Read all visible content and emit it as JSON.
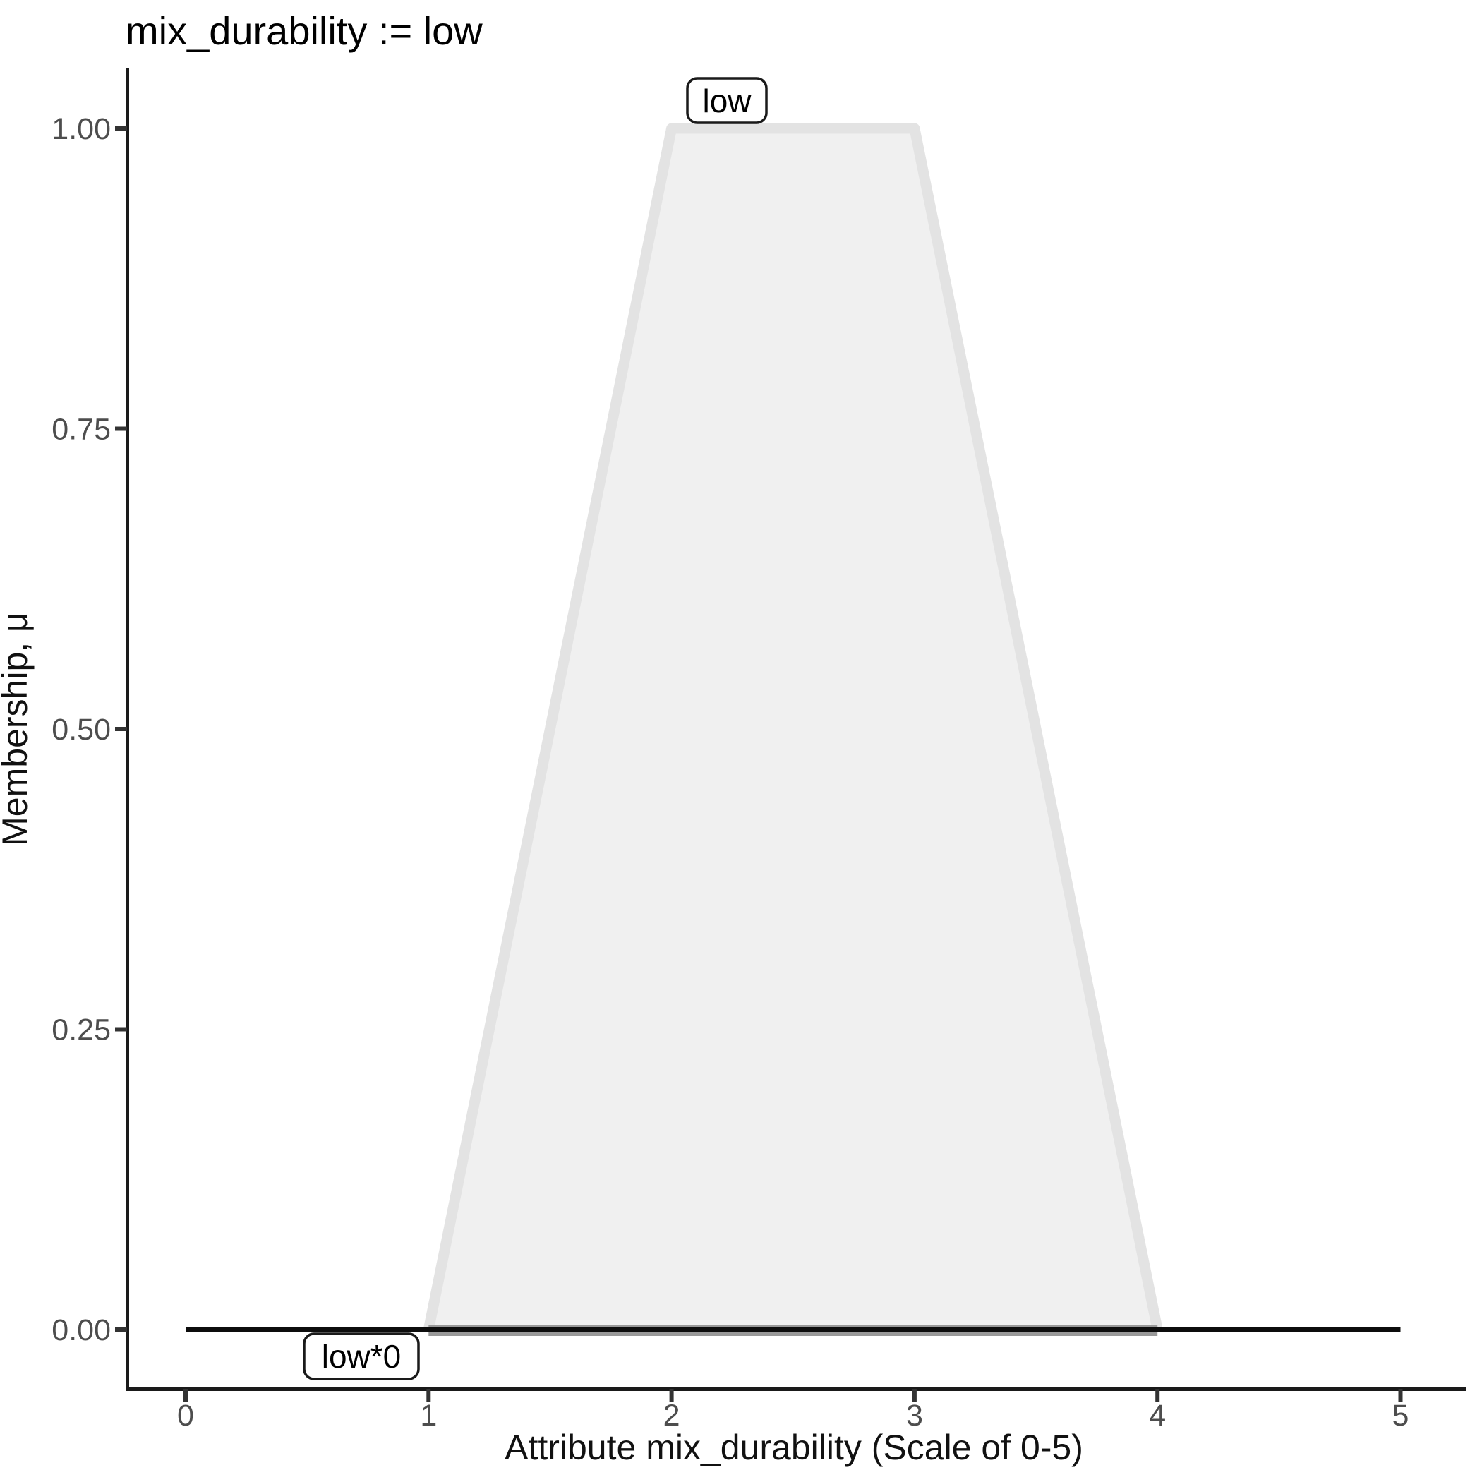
{
  "chart_data": {
    "type": "area",
    "title": "mix_durability := low",
    "xlabel": "Attribute mix_durability (Scale of 0-5)",
    "ylabel": "Membership, μ",
    "xlim": [
      0,
      5
    ],
    "ylim": [
      0,
      1
    ],
    "grid": false,
    "legend": "none",
    "x_ticks": [
      0,
      1,
      2,
      3,
      4,
      5
    ],
    "y_ticks": [
      1.0,
      0.75,
      0.5,
      0.25,
      0.0
    ],
    "y_tick_labels": [
      "1.00",
      "0.75",
      "0.50",
      "0.25",
      "0.00"
    ],
    "series": [
      {
        "name": "low",
        "label": "low",
        "kind": "trapezoid-membership",
        "points": [
          [
            1,
            0
          ],
          [
            2,
            1
          ],
          [
            3,
            1
          ],
          [
            4,
            0
          ]
        ],
        "stroke": "#e3e3e3",
        "fill": "#f0f0f0",
        "base_stroke": "#999999"
      },
      {
        "name": "low*0",
        "label": "low*0",
        "kind": "flat-zero-line",
        "points": [
          [
            0,
            0
          ],
          [
            5,
            0
          ]
        ],
        "stroke": "#0d0d0d"
      }
    ],
    "colors": {
      "axis_line": "#1a1a1a",
      "tick_mark": "#333333",
      "tick_text": "#4d4d4d",
      "background": "#ffffff"
    }
  }
}
